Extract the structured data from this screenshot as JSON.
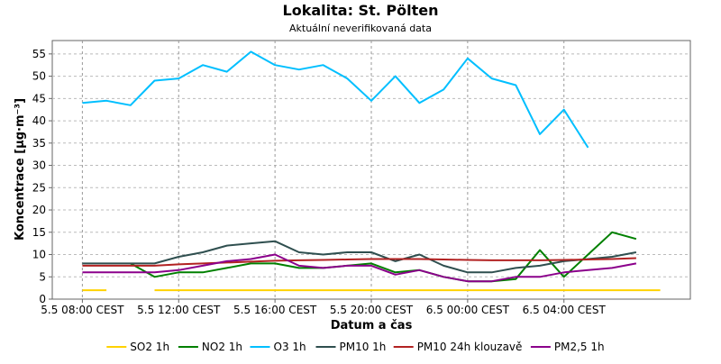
{
  "chart_data": {
    "type": "line",
    "title": "Lokalita: St. Pölten",
    "subtitle": "Aktuální neverifikovaná data",
    "xlabel": "Datum a čas",
    "ylabel": "Koncentrace [µg·m⁻³]",
    "ylim": [
      0,
      58
    ],
    "yticks": [
      0,
      5,
      10,
      15,
      20,
      25,
      30,
      35,
      40,
      45,
      50,
      55
    ],
    "xlim": [
      "5.5 06:45",
      "6.5 09:15"
    ],
    "xticks": [
      {
        "x": "5.5 08:00",
        "label": "5.5 08:00 CEST"
      },
      {
        "x": "5.5 12:00",
        "label": "5.5 12:00 CEST"
      },
      {
        "x": "5.5 16:00",
        "label": "5.5 16:00 CEST"
      },
      {
        "x": "5.5 20:00",
        "label": "5.5 20:00 CEST"
      },
      {
        "x": "6.5 00:00",
        "label": "6.5 00:00 CEST"
      },
      {
        "x": "6.5 04:00",
        "label": "6.5 04:00 CEST"
      }
    ],
    "grid": true,
    "legend_position": "bottom",
    "x": [
      "5.5 08:00",
      "5.5 09:00",
      "5.5 10:00",
      "5.5 11:00",
      "5.5 12:00",
      "5.5 13:00",
      "5.5 14:00",
      "5.5 15:00",
      "5.5 16:00",
      "5.5 17:00",
      "5.5 18:00",
      "5.5 19:00",
      "5.5 20:00",
      "5.5 21:00",
      "5.5 22:00",
      "5.5 23:00",
      "6.5 00:00",
      "6.5 01:00",
      "6.5 02:00",
      "6.5 03:00",
      "6.5 04:00",
      "6.5 05:00",
      "6.5 06:00",
      "6.5 07:00",
      "6.5 08:00"
    ],
    "series": [
      {
        "name": "SO2 1h",
        "color": "#ffd200",
        "width": 2,
        "values": [
          2,
          2,
          null,
          2,
          2,
          2,
          2,
          2,
          2,
          2,
          2,
          2,
          2,
          2,
          2,
          2,
          2,
          2,
          2,
          2,
          2,
          2,
          2,
          2,
          2
        ]
      },
      {
        "name": "NO2 1h",
        "color": "#008000",
        "width": 2,
        "values": [
          null,
          null,
          8,
          5,
          6,
          6,
          7,
          8,
          8,
          7,
          7,
          7.5,
          8,
          6,
          6.5,
          5,
          4,
          4,
          4.5,
          11,
          5,
          10,
          15,
          13.5,
          null
        ]
      },
      {
        "name": "O3 1h",
        "color": "#00bfff",
        "width": 2,
        "values": [
          44,
          44.5,
          43.5,
          49,
          49.5,
          52.5,
          51,
          55.5,
          52.5,
          51.5,
          52.5,
          49.5,
          44.5,
          50,
          44,
          47,
          54,
          49.5,
          48,
          37,
          42.5,
          34,
          null,
          null,
          null
        ]
      },
      {
        "name": "PM10 1h",
        "color": "#2f4f4f",
        "width": 2,
        "values": [
          8,
          8,
          8,
          8,
          9.5,
          10.5,
          12,
          12.5,
          13,
          10.5,
          10,
          10.5,
          10.5,
          8.5,
          10,
          7.5,
          6,
          6,
          7,
          7.5,
          8.5,
          9,
          9.5,
          10.5,
          null
        ]
      },
      {
        "name": "PM10 24h klouzavě",
        "color": "#b22222",
        "width": 2,
        "values": [
          7.5,
          7.5,
          7.5,
          7.5,
          7.8,
          8,
          8.2,
          8.4,
          8.6,
          8.7,
          8.8,
          8.9,
          9,
          9,
          9,
          8.9,
          8.8,
          8.7,
          8.7,
          8.7,
          8.8,
          8.9,
          9,
          9.2,
          null
        ]
      },
      {
        "name": "PM2,5 1h",
        "color": "#8b008b",
        "width": 2,
        "values": [
          6,
          6,
          6,
          6,
          6.5,
          7.5,
          8.5,
          9,
          10,
          7.5,
          7,
          7.5,
          7.5,
          5.5,
          6.5,
          5,
          4,
          4,
          5,
          5,
          6,
          6.5,
          7,
          8,
          null
        ]
      }
    ]
  }
}
